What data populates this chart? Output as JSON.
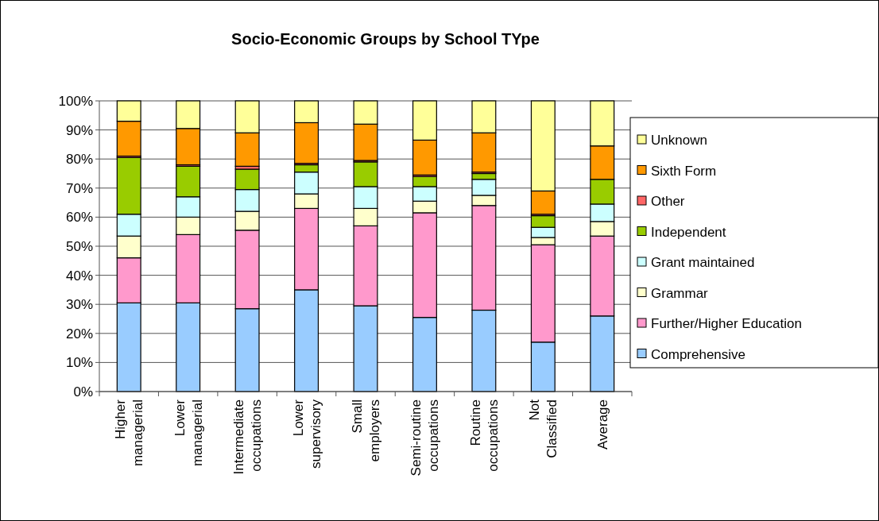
{
  "chart_data": {
    "type": "bar",
    "title": "Socio-Economic Groups by School TYpe",
    "stacked": true,
    "categories": [
      "Higher managerial",
      "Lower managerial",
      "Intermediate occupations",
      "Lower supervisory",
      "Small employers",
      "Semi-routine occupations",
      "Routine occupations",
      "Not Classified",
      "Average"
    ],
    "series": [
      {
        "name": "Comprehensive",
        "color": "#99ccff",
        "values": [
          30.5,
          30.5,
          28.5,
          35,
          29.5,
          25.5,
          28,
          17,
          26
        ]
      },
      {
        "name": "Further/Higher Education",
        "color": "#ff99cc",
        "values": [
          15.5,
          23.5,
          27,
          28,
          27.5,
          36,
          36,
          33.5,
          27.5
        ]
      },
      {
        "name": "Grammar",
        "color": "#ffffcc",
        "values": [
          7.5,
          6,
          6.5,
          5,
          6,
          4,
          3.5,
          2.5,
          5
        ]
      },
      {
        "name": "Grant maintained",
        "color": "#ccffff",
        "values": [
          7.5,
          7,
          7.5,
          7.5,
          7.5,
          5,
          5.5,
          3.5,
          6
        ]
      },
      {
        "name": "Independent",
        "color": "#99cc00",
        "values": [
          19.5,
          10.5,
          7,
          2.5,
          8.5,
          3.5,
          2,
          4,
          8.5
        ]
      },
      {
        "name": "Other",
        "color": "#ff6666",
        "values": [
          0.5,
          0.5,
          1,
          0.5,
          0.5,
          0.5,
          0.5,
          0.5,
          null
        ]
      },
      {
        "name": "Sixth Form",
        "color": "#ff9900",
        "values": [
          12,
          12.5,
          11.5,
          14,
          12.5,
          12,
          13.5,
          8,
          11.5
        ]
      },
      {
        "name": "Unknown",
        "color": "#ffff99",
        "values": [
          7,
          9.5,
          11,
          7.5,
          8,
          13.5,
          11,
          31,
          15.5
        ]
      }
    ],
    "ylim": [
      0,
      100
    ],
    "yticks": [
      {
        "value": 0,
        "label": "0%"
      },
      {
        "value": 10,
        "label": "10%"
      },
      {
        "value": 20,
        "label": "20%"
      },
      {
        "value": 30,
        "label": "30%"
      },
      {
        "value": 40,
        "label": "40%"
      },
      {
        "value": 50,
        "label": "50%"
      },
      {
        "value": 60,
        "label": "60%"
      },
      {
        "value": 70,
        "label": "70%"
      },
      {
        "value": 80,
        "label": "80%"
      },
      {
        "value": 90,
        "label": "90%"
      },
      {
        "value": 100,
        "label": "100%"
      }
    ],
    "grid": "y",
    "legend": "right"
  }
}
